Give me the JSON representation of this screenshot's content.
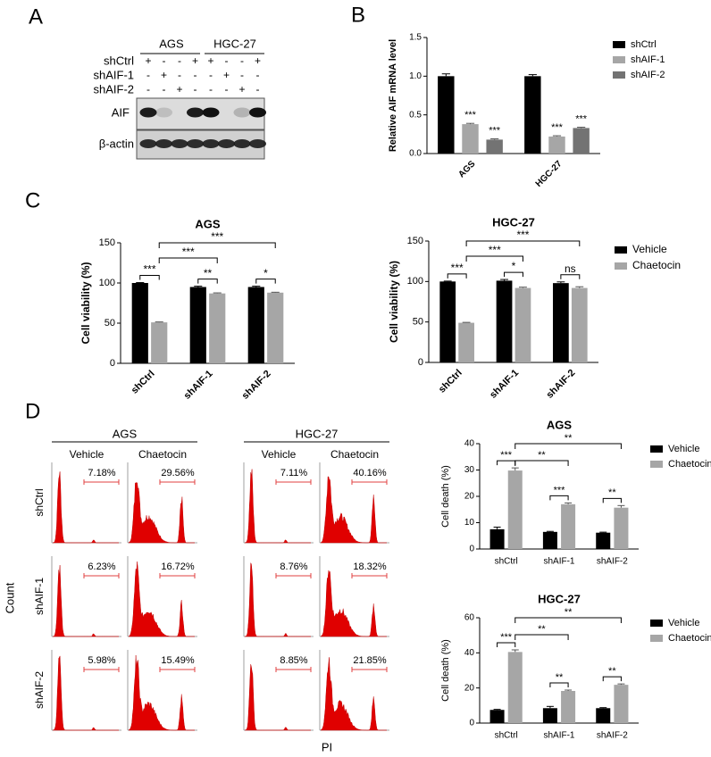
{
  "panel_labels": [
    "A",
    "B",
    "C",
    "D"
  ],
  "blot": {
    "groups": [
      "AGS",
      "HGC-27"
    ],
    "rows": [
      {
        "label": "shCtrl",
        "signs": [
          "+",
          "-",
          "-",
          "+",
          "+",
          "-",
          "-",
          "+"
        ]
      },
      {
        "label": "shAIF-1",
        "signs": [
          "-",
          "+",
          "-",
          "-",
          "-",
          "+",
          "-",
          "-"
        ]
      },
      {
        "label": "shAIF-2",
        "signs": [
          "-",
          "-",
          "+",
          "-",
          "-",
          "-",
          "+",
          "-"
        ]
      }
    ],
    "bands": [
      "AIF",
      "β-actin"
    ]
  },
  "flow": {
    "groups": [
      {
        "name": "AGS",
        "conditions": [
          "Vehicle",
          "Chaetocin"
        ]
      },
      {
        "name": "HGC-27",
        "conditions": [
          "Vehicle",
          "Chaetocin"
        ]
      }
    ],
    "rows": [
      {
        "label": "shCtrl",
        "percentages": [
          "7.18%",
          "29.56%",
          "7.11%",
          "40.16%"
        ]
      },
      {
        "label": "shAIF-1",
        "percentages": [
          "6.23%",
          "16.72%",
          "8.76%",
          "18.32%"
        ]
      },
      {
        "label": "shAIF-2",
        "percentages": [
          "5.98%",
          "15.49%",
          "8.85%",
          "21.85%"
        ]
      }
    ],
    "ylabel": "Count",
    "xlabel": "PI"
  },
  "chart_data": [
    {
      "type": "bar",
      "ylabel": "Relative AIF mRNA level",
      "categories": [
        "AGS",
        "HGC-27"
      ],
      "series": [
        {
          "name": "shCtrl",
          "color": "#000000",
          "values": [
            1.0,
            1.0
          ],
          "errors": [
            0.03,
            0.02
          ]
        },
        {
          "name": "shAIF-1",
          "color": "#a6a6a6",
          "values": [
            0.38,
            0.22
          ],
          "errors": [
            0.01,
            0.01
          ],
          "significance": [
            "***",
            "***"
          ]
        },
        {
          "name": "shAIF-2",
          "color": "#737373",
          "values": [
            0.18,
            0.33
          ],
          "errors": [
            0.01,
            0.01
          ],
          "significance": [
            "***",
            "***"
          ]
        }
      ],
      "ylim": [
        0,
        1.5
      ],
      "yticks": [
        {
          "value": 0,
          "label": "0.0"
        },
        0.5,
        {
          "value": 1,
          "label": "1.0"
        },
        1.5
      ],
      "legend": "right",
      "rotate_categories": true
    },
    {
      "type": "bar",
      "title": "AGS",
      "ylabel": "Cell viability (%)",
      "categories": [
        "shCtrl",
        "shAIF-1",
        "shAIF-2"
      ],
      "series": [
        {
          "name": "Vehicle",
          "color": "#000000",
          "values": [
            100,
            95,
            95
          ],
          "errors": [
            0.5,
            1,
            1
          ]
        },
        {
          "name": "Chaetocin",
          "color": "#a6a6a6",
          "values": [
            51,
            87,
            88
          ],
          "errors": [
            0.5,
            0.7,
            0.5
          ]
        }
      ],
      "within": [
        "***",
        "**",
        "*"
      ],
      "across": [
        {
          "label": "***",
          "to": "shAIF-2"
        },
        {
          "label": "***",
          "to": "shAIF-1"
        }
      ],
      "ylim": [
        0,
        150
      ],
      "yticks": [
        0,
        50,
        100,
        150
      ],
      "rotate_categories": true
    },
    {
      "type": "bar",
      "title": "HGC-27",
      "ylabel": "Cell viability (%)",
      "categories": [
        "shCtrl",
        "shAIF-1",
        "shAIF-2"
      ],
      "series": [
        {
          "name": "Vehicle",
          "color": "#000000",
          "values": [
            100,
            101,
            98
          ],
          "errors": [
            0.5,
            1.5,
            1.5
          ]
        },
        {
          "name": "Chaetocin",
          "color": "#a6a6a6",
          "values": [
            49,
            92,
            92
          ],
          "errors": [
            0.5,
            1,
            1.5
          ]
        }
      ],
      "within": [
        "***",
        "*",
        "ns"
      ],
      "across": [
        {
          "label": "***",
          "to": "shAIF-2"
        },
        {
          "label": "***",
          "to": "shAIF-1"
        }
      ],
      "ylim": [
        0,
        150
      ],
      "yticks": [
        0,
        50,
        100,
        150
      ],
      "legend": "right",
      "rotate_categories": true
    },
    {
      "type": "bar",
      "title": "AGS",
      "ylabel": "Cell death (%)",
      "categories": [
        "shCtrl",
        "shAIF-1",
        "shAIF-2"
      ],
      "series": [
        {
          "name": "Vehicle",
          "color": "#000000",
          "values": [
            7.5,
            6.5,
            6.2
          ],
          "errors": [
            0.8,
            0.2,
            0.2
          ]
        },
        {
          "name": "Chaetocin",
          "color": "#a6a6a6",
          "values": [
            29.8,
            17,
            15.7
          ],
          "errors": [
            1,
            0.5,
            0.8
          ]
        }
      ],
      "within": [
        "***",
        "***",
        "**"
      ],
      "across": [
        {
          "label": "**",
          "to": "shAIF-2"
        },
        {
          "label": "**",
          "to": "shAIF-1"
        }
      ],
      "ylim": [
        0,
        40
      ],
      "yticks": [
        0,
        10,
        20,
        30,
        40
      ],
      "legend": "right",
      "rotate_categories": false
    },
    {
      "type": "bar",
      "title": "HGC-27",
      "ylabel": "Cell death (%)",
      "categories": [
        "shCtrl",
        "shAIF-1",
        "shAIF-2"
      ],
      "series": [
        {
          "name": "Vehicle",
          "color": "#000000",
          "values": [
            7.5,
            8.5,
            8.5
          ],
          "errors": [
            0.3,
            1,
            0.3
          ]
        },
        {
          "name": "Chaetocin",
          "color": "#a6a6a6",
          "values": [
            40.5,
            18.3,
            21.8
          ],
          "errors": [
            1.2,
            0.5,
            0.5
          ]
        }
      ],
      "within": [
        "***",
        "**",
        "**"
      ],
      "across": [
        {
          "label": "**",
          "to": "shAIF-2"
        },
        {
          "label": "**",
          "to": "shAIF-1"
        }
      ],
      "ylim": [
        0,
        60
      ],
      "yticks": [
        0,
        20,
        40,
        60
      ],
      "legend": "right",
      "rotate_categories": false
    }
  ]
}
